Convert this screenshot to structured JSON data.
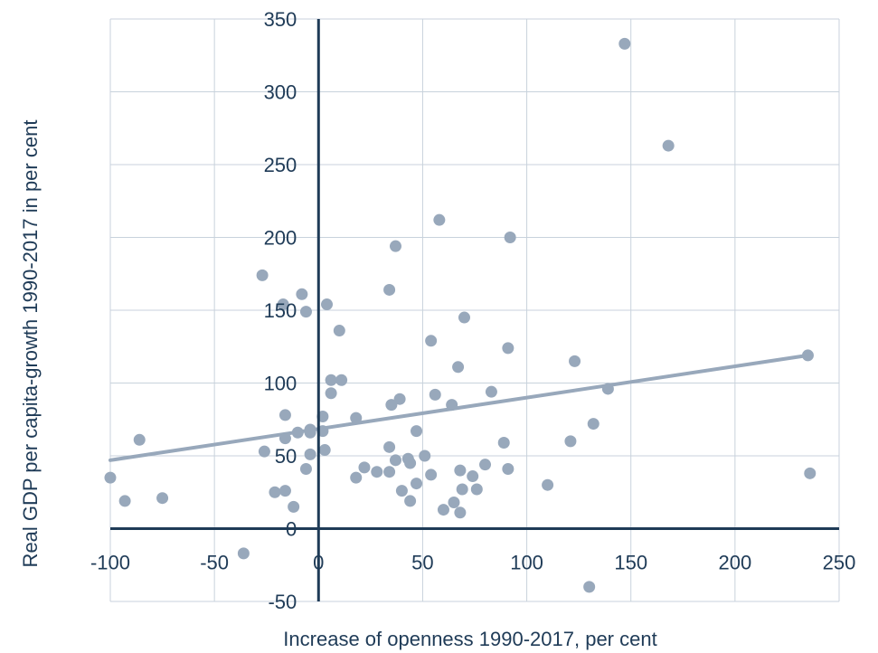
{
  "chart_data": {
    "type": "scatter",
    "xlabel": "Increase of openness 1990-2017, per cent",
    "ylabel": "Real GDP per capita-growth 1990-2017 in per cent",
    "xlim": [
      -100,
      250
    ],
    "ylim": [
      -50,
      350
    ],
    "x_ticks": [
      -100,
      -50,
      0,
      50,
      100,
      150,
      200,
      250
    ],
    "y_ticks": [
      -50,
      0,
      50,
      100,
      150,
      200,
      250,
      300,
      350
    ],
    "grid": true,
    "legend": "none",
    "colors": {
      "points": "#98a8bb",
      "trendline": "#98a8bb",
      "zero_axes": "#1f3b57",
      "grid": "#c8d2dc",
      "text": "#1f3b57"
    },
    "trendline": {
      "x": [
        -100,
        235
      ],
      "y": [
        47,
        119
      ]
    },
    "points": [
      {
        "x": -100,
        "y": 35
      },
      {
        "x": -93,
        "y": 19
      },
      {
        "x": -86,
        "y": 61
      },
      {
        "x": -75,
        "y": 21
      },
      {
        "x": -36,
        "y": -17
      },
      {
        "x": -27,
        "y": 174
      },
      {
        "x": -26,
        "y": 53
      },
      {
        "x": -21,
        "y": 25
      },
      {
        "x": -17,
        "y": 154
      },
      {
        "x": -16,
        "y": 78
      },
      {
        "x": -16,
        "y": 62
      },
      {
        "x": -16,
        "y": 26
      },
      {
        "x": -12,
        "y": 15
      },
      {
        "x": -10,
        "y": 66
      },
      {
        "x": -8,
        "y": 161
      },
      {
        "x": -6,
        "y": 149
      },
      {
        "x": -6,
        "y": 41
      },
      {
        "x": -4,
        "y": 68
      },
      {
        "x": -4,
        "y": 66
      },
      {
        "x": -4,
        "y": 51
      },
      {
        "x": 2,
        "y": 77
      },
      {
        "x": 2,
        "y": 67
      },
      {
        "x": 3,
        "y": 54
      },
      {
        "x": 4,
        "y": 154
      },
      {
        "x": 6,
        "y": 102
      },
      {
        "x": 6,
        "y": 93
      },
      {
        "x": 10,
        "y": 136
      },
      {
        "x": 11,
        "y": 102
      },
      {
        "x": 18,
        "y": 76
      },
      {
        "x": 18,
        "y": 35
      },
      {
        "x": 22,
        "y": 42
      },
      {
        "x": 28,
        "y": 39
      },
      {
        "x": 34,
        "y": 164
      },
      {
        "x": 34,
        "y": 56
      },
      {
        "x": 34,
        "y": 39
      },
      {
        "x": 35,
        "y": 85
      },
      {
        "x": 37,
        "y": 194
      },
      {
        "x": 37,
        "y": 47
      },
      {
        "x": 39,
        "y": 89
      },
      {
        "x": 40,
        "y": 26
      },
      {
        "x": 43,
        "y": 48
      },
      {
        "x": 44,
        "y": 45
      },
      {
        "x": 44,
        "y": 19
      },
      {
        "x": 47,
        "y": 67
      },
      {
        "x": 47,
        "y": 31
      },
      {
        "x": 51,
        "y": 50
      },
      {
        "x": 54,
        "y": 129
      },
      {
        "x": 54,
        "y": 37
      },
      {
        "x": 56,
        "y": 92
      },
      {
        "x": 58,
        "y": 212
      },
      {
        "x": 60,
        "y": 13
      },
      {
        "x": 64,
        "y": 85
      },
      {
        "x": 65,
        "y": 18
      },
      {
        "x": 67,
        "y": 111
      },
      {
        "x": 68,
        "y": 40
      },
      {
        "x": 68,
        "y": 11
      },
      {
        "x": 69,
        "y": 27
      },
      {
        "x": 70,
        "y": 145
      },
      {
        "x": 74,
        "y": 36
      },
      {
        "x": 76,
        "y": 27
      },
      {
        "x": 80,
        "y": 44
      },
      {
        "x": 83,
        "y": 94
      },
      {
        "x": 89,
        "y": 59
      },
      {
        "x": 91,
        "y": 124
      },
      {
        "x": 91,
        "y": 41
      },
      {
        "x": 92,
        "y": 200
      },
      {
        "x": 110,
        "y": 30
      },
      {
        "x": 121,
        "y": 60
      },
      {
        "x": 123,
        "y": 115
      },
      {
        "x": 130,
        "y": -40
      },
      {
        "x": 132,
        "y": 72
      },
      {
        "x": 139,
        "y": 96
      },
      {
        "x": 147,
        "y": 333
      },
      {
        "x": 168,
        "y": 263
      },
      {
        "x": 235,
        "y": 119
      },
      {
        "x": 236,
        "y": 38
      }
    ]
  }
}
